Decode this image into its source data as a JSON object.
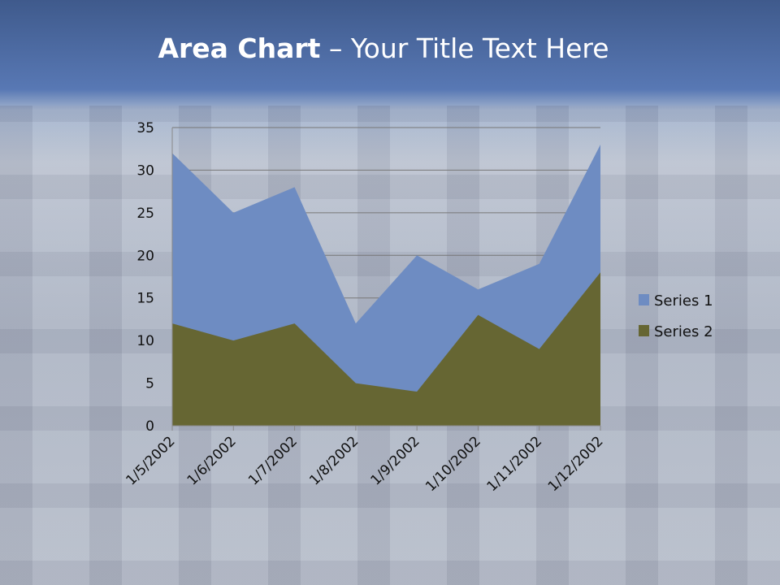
{
  "slide": {
    "title_bold": "Area Chart",
    "title_rest": " – Your Title Text Here"
  },
  "chart_data": {
    "type": "area",
    "title": "",
    "categories": [
      "1/5/2002",
      "1/6/2002",
      "1/7/2002",
      "1/8/2002",
      "1/9/2002",
      "1/10/2002",
      "1/11/2002",
      "1/12/2002"
    ],
    "series": [
      {
        "name": "Series 1",
        "color": "#6e8cc2",
        "values": [
          32,
          25,
          28,
          12,
          20,
          16,
          19,
          33
        ]
      },
      {
        "name": "Series 2",
        "color": "#666633",
        "values": [
          12,
          10,
          12,
          5,
          4,
          13,
          9,
          18
        ]
      }
    ],
    "ylim": [
      0,
      35
    ],
    "yticks": [
      0,
      5,
      10,
      15,
      20,
      25,
      30,
      35
    ],
    "grid": true,
    "legend": "right"
  }
}
